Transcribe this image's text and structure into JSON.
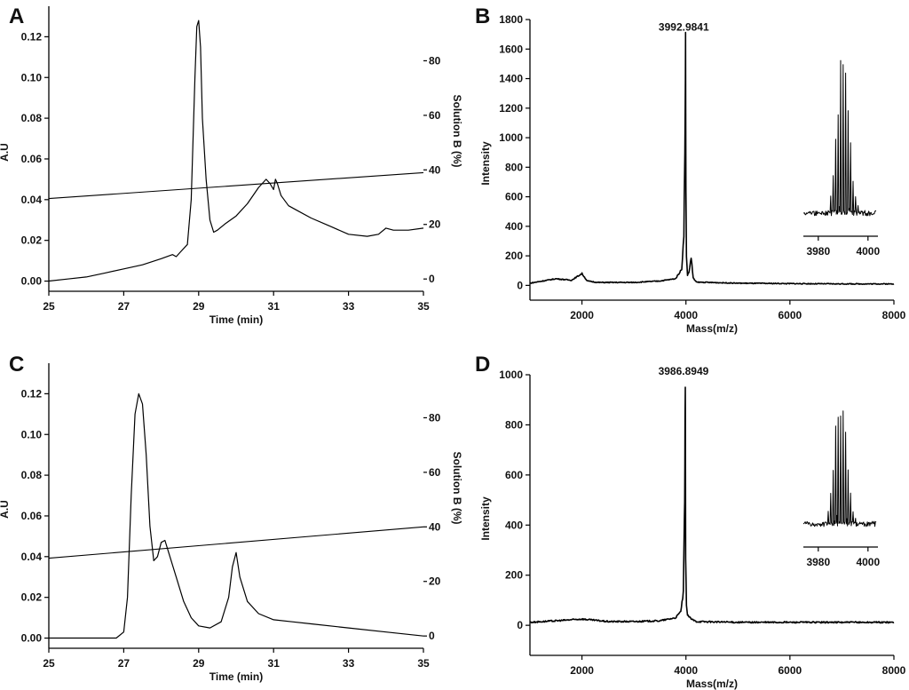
{
  "chart_data": [
    {
      "panel": "A",
      "type": "line",
      "xlabel": "Time (min)",
      "ylabel": "A.U",
      "y2label": "Solution B (%)",
      "xlim": [
        25,
        35
      ],
      "ylim": [
        -0.005,
        0.135
      ],
      "y2lim": [
        -4.5,
        100
      ],
      "xticks": [
        "25",
        "27",
        "29",
        "31",
        "33",
        "35"
      ],
      "yticks": [
        "0.00",
        "0.02",
        "0.04",
        "0.06",
        "0.08",
        "0.10",
        "0.12"
      ],
      "y2ticks": [
        "0",
        "20",
        "40",
        "60",
        "80"
      ],
      "series": [
        {
          "axis": "left",
          "x": [
            25,
            25.5,
            26,
            26.5,
            27,
            27.5,
            28,
            28.3,
            28.4,
            28.5,
            28.7,
            28.8,
            28.9,
            28.95,
            29.0,
            29.05,
            29.1,
            29.2,
            29.3,
            29.4,
            29.5,
            29.7,
            30.0,
            30.3,
            30.6,
            30.8,
            30.9,
            31.0,
            31.05,
            31.1,
            31.2,
            31.4,
            31.6,
            32.0,
            32.5,
            33.0,
            33.5,
            33.8,
            34.0,
            34.2,
            34.6,
            35.0
          ],
          "y": [
            0.0,
            0.001,
            0.002,
            0.004,
            0.006,
            0.008,
            0.011,
            0.013,
            0.012,
            0.014,
            0.018,
            0.04,
            0.1,
            0.125,
            0.128,
            0.115,
            0.08,
            0.05,
            0.03,
            0.024,
            0.025,
            0.028,
            0.032,
            0.038,
            0.046,
            0.05,
            0.048,
            0.045,
            0.05,
            0.048,
            0.042,
            0.037,
            0.035,
            0.031,
            0.027,
            0.023,
            0.022,
            0.023,
            0.026,
            0.025,
            0.025,
            0.026
          ]
        },
        {
          "axis": "right",
          "x": [
            25,
            35
          ],
          "y": [
            29.5,
            39
          ]
        }
      ]
    },
    {
      "panel": "B",
      "type": "line",
      "xlabel": "Mass(m/z)",
      "ylabel": "Intensity",
      "peak_label": "3992.9841",
      "peak": [
        3993,
        1640
      ],
      "xlim": [
        1000,
        8000
      ],
      "ylim": [
        -100,
        1800
      ],
      "xticks": [
        2000,
        4000,
        6000,
        8000
      ],
      "yticks": [
        0,
        200,
        400,
        600,
        800,
        1000,
        1200,
        1400,
        1600,
        1800
      ],
      "inset": {
        "xlim": [
          3974,
          4004
        ],
        "xticks": [
          "3980",
          "4000"
        ],
        "center": 3990
      },
      "series": [
        {
          "x": [
            1000,
            1500,
            1800,
            2000,
            2100,
            2300,
            3000,
            3500,
            3800,
            3920,
            3960,
            3975,
            3985,
            3993,
            4000,
            4010,
            4030,
            4060,
            4100,
            4140,
            4200,
            5000,
            6000,
            7000,
            8000
          ],
          "y": [
            15,
            45,
            35,
            80,
            30,
            20,
            20,
            30,
            45,
            110,
            350,
            780,
            1100,
            1640,
            650,
            200,
            70,
            90,
            190,
            50,
            22,
            15,
            12,
            10,
            10
          ]
        }
      ]
    },
    {
      "panel": "C",
      "type": "line",
      "xlabel": "Time (min)",
      "ylabel": "A.U",
      "y2label": "Solution B (%)",
      "xlim": [
        25,
        35
      ],
      "ylim": [
        -0.005,
        0.135
      ],
      "y2lim": [
        -4.5,
        100
      ],
      "xticks": [
        "25",
        "27",
        "29",
        "31",
        "33",
        "35"
      ],
      "yticks": [
        "0.00",
        "0.02",
        "0.04",
        "0.06",
        "0.08",
        "0.10",
        "0.12"
      ],
      "y2ticks": [
        "0",
        "20",
        "40",
        "60",
        "80"
      ],
      "series": [
        {
          "axis": "left",
          "x": [
            25,
            26,
            26.8,
            27.0,
            27.1,
            27.2,
            27.3,
            27.4,
            27.5,
            27.6,
            27.7,
            27.8,
            27.9,
            28.0,
            28.1,
            28.2,
            28.4,
            28.6,
            28.8,
            29.0,
            29.3,
            29.6,
            29.8,
            29.9,
            30.0,
            30.1,
            30.3,
            30.6,
            31.0,
            31.5,
            32,
            33,
            34,
            35
          ],
          "y": [
            0.0,
            0.0,
            0.0,
            0.003,
            0.02,
            0.07,
            0.11,
            0.12,
            0.115,
            0.09,
            0.055,
            0.038,
            0.04,
            0.047,
            0.048,
            0.042,
            0.03,
            0.018,
            0.01,
            0.006,
            0.005,
            0.008,
            0.02,
            0.035,
            0.042,
            0.03,
            0.018,
            0.012,
            0.009,
            0.008,
            0.007,
            0.005,
            0.003,
            0.001
          ]
        },
        {
          "axis": "right",
          "x": [
            25,
            35
          ],
          "y": [
            28.5,
            40
          ]
        }
      ]
    },
    {
      "panel": "D",
      "type": "line",
      "xlabel": "Mass(m/z)",
      "ylabel": "Intensity",
      "peak_label": "3986.8949",
      "peak": [
        3987,
        950
      ],
      "xlim": [
        1000,
        8000
      ],
      "ylim": [
        -120,
        1000
      ],
      "xticks": [
        2000,
        4000,
        6000,
        8000
      ],
      "yticks": [
        0,
        200,
        400,
        600,
        800,
        1000
      ],
      "inset": {
        "xlim": [
          3974,
          4004
        ],
        "xticks": [
          "3980",
          "4000"
        ],
        "center": 3989
      },
      "series": [
        {
          "x": [
            1000,
            1500,
            2000,
            2500,
            3000,
            3500,
            3800,
            3900,
            3950,
            3970,
            3980,
            3987,
            3995,
            4010,
            4030,
            4060,
            4100,
            4200,
            5000,
            6000,
            7000,
            8000
          ],
          "y": [
            12,
            18,
            25,
            15,
            15,
            18,
            30,
            55,
            130,
            420,
            600,
            950,
            280,
            80,
            40,
            35,
            25,
            15,
            12,
            12,
            12,
            12
          ]
        }
      ]
    }
  ]
}
